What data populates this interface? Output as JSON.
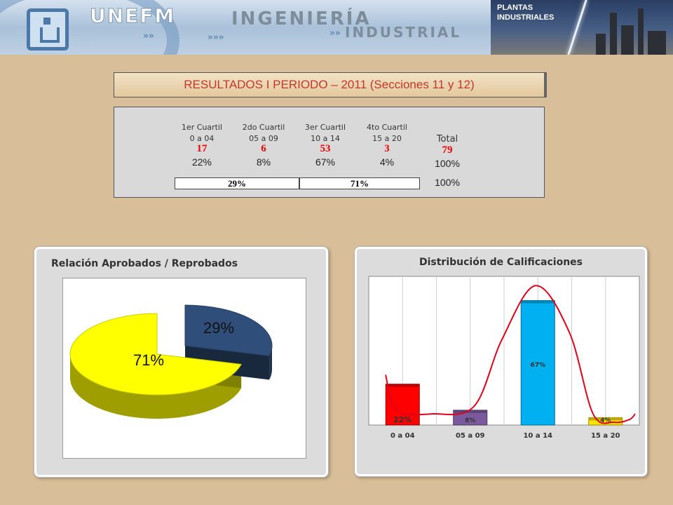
{
  "banner": {
    "unefm": "UNEFM",
    "ingenieria": "INGENIERÍA",
    "industrial": "INDUSTRIAL",
    "plantas_line1": "PLANTAS",
    "plantas_line2": "INDUSTRIALES"
  },
  "title": "RESULTADOS I PERIODO – 2011 (Secciones 11 y 12)",
  "table": {
    "columns": [
      {
        "name": "1er Cuartil",
        "range": "0 a 04",
        "count": "17",
        "percent": "22%"
      },
      {
        "name": "2do Cuartil",
        "range": "05 a 09",
        "count": "6",
        "percent": "8%"
      },
      {
        "name": "3er Cuartil",
        "range": "10 a 14",
        "count": "53",
        "percent": "67%"
      },
      {
        "name": "4to Cuartil",
        "range": "15 a 20",
        "count": "3",
        "percent": "4%"
      }
    ],
    "total_label": "Total",
    "total_count": "79",
    "total_percent": "100%",
    "reprobados": "29%",
    "aprobados": "71%",
    "split_total": "100%"
  },
  "colors": {
    "pie_approved": "#ffff00",
    "pie_failed": "#2f4f7a",
    "bar_q1": "#ff0000",
    "bar_q2": "#7a5a9c",
    "bar_q3": "#00b0f0",
    "bar_q4": "#ffe400",
    "curve": "#e0001b"
  },
  "chart_data": [
    {
      "type": "pie",
      "title": "Relación Aprobados / Reprobados",
      "labels": [
        "71%",
        "29%"
      ],
      "values": [
        71,
        29
      ],
      "three_d": true,
      "exploded_slice": "29%"
    },
    {
      "type": "bar",
      "title": "Distribución de Calificaciones",
      "categories": [
        "0 a 04",
        "05 a 09",
        "10 a 14",
        "15 a 20"
      ],
      "values": [
        22,
        8,
        67,
        4
      ],
      "data_labels": [
        "22%",
        "8%",
        "67%",
        "4%"
      ],
      "ylim": [
        0,
        80
      ],
      "grid": "vertical",
      "overlay": "smoothed distribution curve"
    }
  ]
}
